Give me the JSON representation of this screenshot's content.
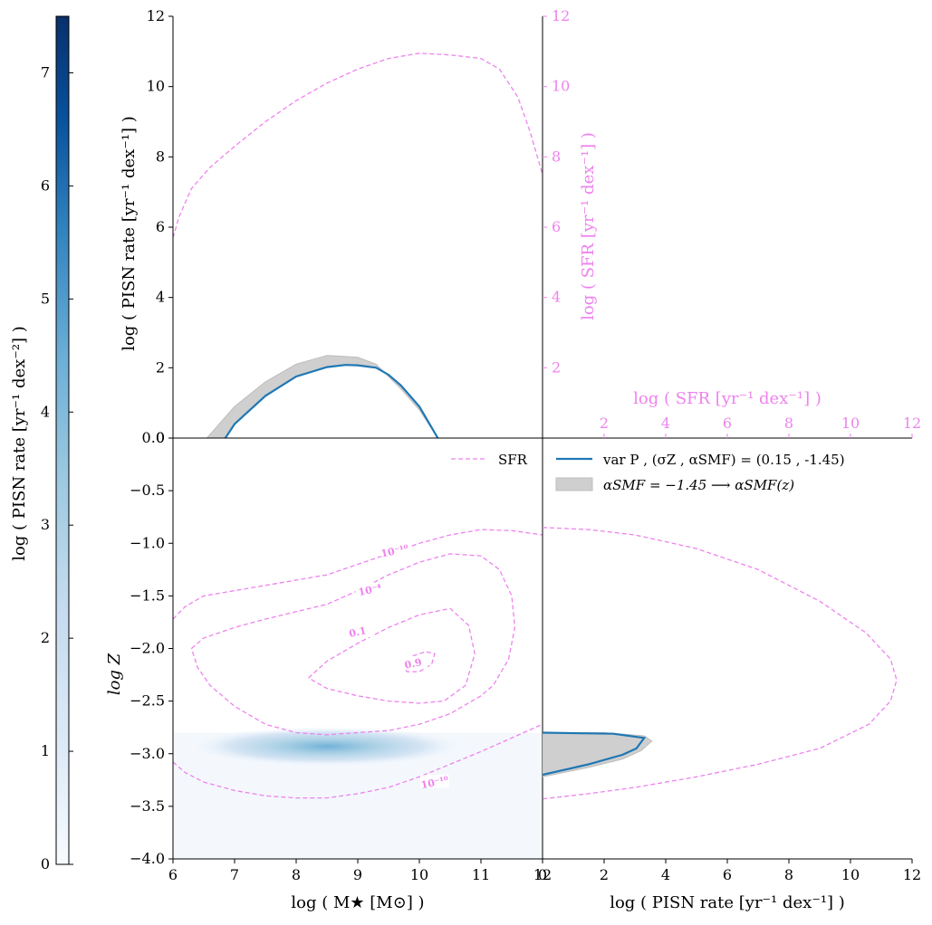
{
  "colors": {
    "pink": "#ee82ee",
    "blue": "#1f77b4",
    "band": "#c8c8c8",
    "cmap_dark": "#08306b",
    "cmap_mid": "#6baed6",
    "cmap_light": "#f7fbff"
  },
  "colorbar": {
    "label": "log ( PISN rate [yr⁻¹ dex⁻²] )",
    "ticks": [
      "0",
      "1",
      "2",
      "3",
      "4",
      "5",
      "6",
      "7"
    ]
  },
  "legend": {
    "sfr": "SFR",
    "var_p": "var P  , (σZ , αSMF) = (0.15 , -1.45)",
    "band": "αSMF = −1.45 ⟶ αSMF(z)"
  },
  "chart_data": [
    {
      "id": "top",
      "type": "line",
      "ylabel": "log ( PISN rate [yr⁻¹ dex⁻¹] )",
      "ylabel_right": "log ( SFR [yr⁻¹ dex⁻¹] )",
      "xlim": [
        6,
        12
      ],
      "ylim": [
        0,
        12
      ],
      "yticks": [
        0,
        2,
        4,
        6,
        8,
        10,
        12
      ],
      "yticks_right": [
        2,
        4,
        6,
        8,
        10,
        12
      ],
      "series": [
        {
          "name": "SFR",
          "style": "dashed",
          "x": [
            6.0,
            6.1,
            6.3,
            6.6,
            7.0,
            7.5,
            8.0,
            8.5,
            9.0,
            9.5,
            10.0,
            10.5,
            11.0,
            11.3,
            11.6,
            11.8,
            12.0
          ],
          "y": [
            5.7,
            6.3,
            7.1,
            7.7,
            8.3,
            9.0,
            9.6,
            10.1,
            10.5,
            10.8,
            10.95,
            10.9,
            10.8,
            10.5,
            9.7,
            8.7,
            7.5
          ]
        },
        {
          "name": "var P",
          "style": "solid",
          "x": [
            6.85,
            7.0,
            7.5,
            8.0,
            8.5,
            8.8,
            9.0,
            9.3,
            9.5,
            9.7,
            10.0,
            10.2,
            10.3
          ],
          "y": [
            0.0,
            0.4,
            1.2,
            1.75,
            2.02,
            2.08,
            2.07,
            2.0,
            1.8,
            1.5,
            0.9,
            0.3,
            0.0
          ]
        },
        {
          "name": "band_upper",
          "style": "fill",
          "x": [
            6.55,
            6.8,
            7.0,
            7.5,
            8.0,
            8.5,
            9.0,
            9.3,
            9.5,
            9.7,
            10.0,
            10.3
          ],
          "y": [
            0.0,
            0.5,
            0.9,
            1.6,
            2.1,
            2.35,
            2.3,
            2.1,
            1.75,
            1.4,
            0.8,
            0.0
          ]
        },
        {
          "name": "band_lower",
          "style": "fill",
          "x": [
            6.85,
            7.0,
            7.5,
            8.0,
            8.5,
            8.8,
            9.0,
            9.3,
            9.5,
            9.7,
            10.0,
            10.3
          ],
          "y": [
            0.0,
            0.4,
            1.2,
            1.75,
            2.02,
            2.08,
            2.07,
            2.0,
            1.8,
            1.5,
            0.9,
            0.0
          ]
        }
      ]
    },
    {
      "id": "main",
      "type": "heatmap",
      "xlabel": "log ( M★ [M⊙] )",
      "ylabel": "log Z",
      "xlim": [
        6,
        12
      ],
      "ylim": [
        -4.0,
        0.0
      ],
      "xticks": [
        6,
        7,
        8,
        9,
        10,
        11,
        12
      ],
      "yticks": [
        -4.0,
        -3.5,
        -3.0,
        -2.5,
        -2.0,
        -1.5,
        -1.0,
        -0.5,
        0.0
      ],
      "heatmap": {
        "xrange": [
          6,
          12
        ],
        "zrange": [
          -4.0,
          -2.8
        ],
        "peak_x": 8.5,
        "peak_z": -2.93
      },
      "contours": [
        {
          "label": "10⁻¹⁰",
          "label_x": 10.25,
          "label_z": -3.28,
          "x": [
            6.0,
            6.2,
            6.5,
            7.0,
            7.5,
            8.0,
            8.5,
            9.0,
            9.5,
            10.0,
            10.5,
            11.0,
            11.5,
            12.0
          ],
          "y": [
            -3.08,
            -3.18,
            -3.27,
            -3.35,
            -3.4,
            -3.42,
            -3.42,
            -3.38,
            -3.32,
            -3.22,
            -3.1,
            -2.98,
            -2.85,
            -2.72
          ]
        },
        {
          "label": "10⁻¹⁰",
          "label_x": 9.6,
          "label_z": -1.08,
          "x": [
            6.0,
            6.2,
            6.5,
            7.0,
            7.5,
            8.0,
            8.5,
            9.0,
            9.5,
            10.0,
            10.5,
            11.0,
            11.5,
            12.0
          ],
          "y": [
            -1.72,
            -1.6,
            -1.5,
            -1.45,
            -1.4,
            -1.35,
            -1.3,
            -1.2,
            -1.1,
            -1.0,
            -0.92,
            -0.87,
            -0.88,
            -0.92
          ]
        },
        {
          "label": "10⁻⁴",
          "label_x": 9.2,
          "label_z": -1.45,
          "x": [
            6.3,
            6.5,
            7.0,
            7.5,
            8.0,
            8.5,
            9.0,
            9.5,
            10.0,
            10.5,
            11.0,
            11.3,
            11.5,
            11.55,
            11.45,
            11.2,
            11.0,
            10.5,
            10.0,
            9.5,
            9.0,
            8.5,
            8.0,
            7.5,
            7.0,
            6.6,
            6.4,
            6.3
          ],
          "y": [
            -2.0,
            -1.9,
            -1.8,
            -1.72,
            -1.65,
            -1.58,
            -1.45,
            -1.3,
            -1.18,
            -1.1,
            -1.12,
            -1.25,
            -1.5,
            -1.8,
            -2.1,
            -2.35,
            -2.45,
            -2.62,
            -2.72,
            -2.78,
            -2.8,
            -2.82,
            -2.8,
            -2.72,
            -2.55,
            -2.35,
            -2.18,
            -2.0
          ]
        },
        {
          "label": "0.1",
          "label_x": 9.0,
          "label_z": -1.85,
          "x": [
            8.2,
            8.5,
            9.0,
            9.5,
            10.0,
            10.5,
            10.8,
            10.9,
            10.75,
            10.4,
            10.0,
            9.5,
            9.0,
            8.5,
            8.2
          ],
          "y": [
            -2.28,
            -2.12,
            -1.95,
            -1.8,
            -1.68,
            -1.62,
            -1.78,
            -2.05,
            -2.35,
            -2.5,
            -2.52,
            -2.5,
            -2.45,
            -2.38,
            -2.28
          ]
        },
        {
          "label": "0.9",
          "label_x": 9.9,
          "label_z": -2.15,
          "x": [
            9.7,
            9.9,
            10.1,
            10.25,
            10.2,
            10.0,
            9.8,
            9.7
          ],
          "y": [
            -2.15,
            -2.07,
            -2.03,
            -2.05,
            -2.15,
            -2.22,
            -2.22,
            -2.15
          ]
        }
      ]
    },
    {
      "id": "right",
      "type": "line",
      "xlabel": "log ( PISN rate [yr⁻¹ dex⁻¹] )",
      "xlabel_top": "log ( SFR [yr⁻¹ dex⁻¹] )",
      "xlim": [
        0,
        12
      ],
      "ylim": [
        -4.0,
        0.0
      ],
      "xticks": [
        0,
        2,
        4,
        6,
        8,
        10,
        12
      ],
      "xticks_top": [
        2,
        4,
        6,
        8,
        10,
        12
      ],
      "series": [
        {
          "name": "SFR",
          "style": "dashed",
          "x": [
            0.0,
            1.5,
            3.0,
            5.0,
            7.0,
            9.0,
            10.5,
            11.3,
            11.5,
            11.3,
            10.6,
            9.0,
            7.0,
            5.0,
            3.0,
            1.5,
            0.0
          ],
          "y": [
            -0.85,
            -0.87,
            -0.92,
            -1.05,
            -1.25,
            -1.55,
            -1.85,
            -2.1,
            -2.3,
            -2.5,
            -2.72,
            -2.95,
            -3.1,
            -3.22,
            -3.32,
            -3.38,
            -3.43
          ]
        },
        {
          "name": "band",
          "style": "fill",
          "x": [
            0.0,
            2.0,
            3.3,
            3.55,
            3.2,
            2.6,
            1.5,
            0.0,
            0.0
          ],
          "y": [
            -2.8,
            -2.8,
            -2.83,
            -2.88,
            -2.97,
            -3.05,
            -3.13,
            -3.22,
            -2.8
          ]
        },
        {
          "name": "var P",
          "style": "solid",
          "x": [
            0.0,
            2.3,
            3.3,
            3.05,
            2.6,
            1.5,
            0.0
          ],
          "y": [
            -2.8,
            -2.81,
            -2.85,
            -2.95,
            -3.01,
            -3.1,
            -3.2
          ]
        }
      ]
    }
  ]
}
